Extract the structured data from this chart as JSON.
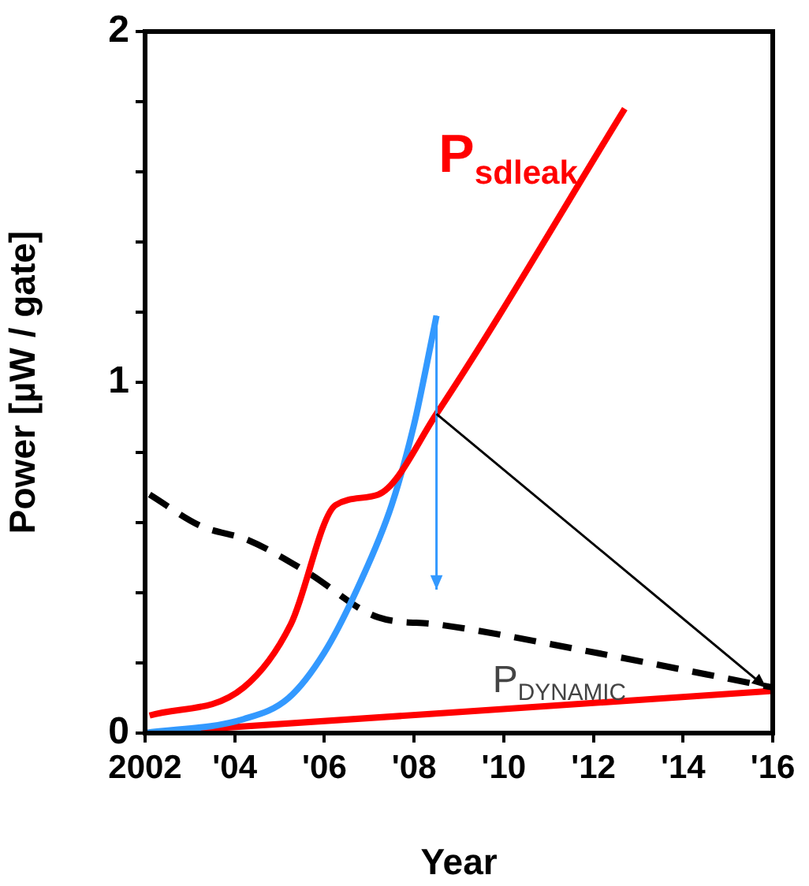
{
  "chart_data": {
    "type": "line",
    "xlabel": "Year",
    "ylabel": "Power [µW / gate]",
    "xlim": [
      2002,
      2016
    ],
    "xticks": [
      {
        "value": 2002,
        "label": "2002"
      },
      {
        "value": 2004,
        "label": "'04"
      },
      {
        "value": 2006,
        "label": "'06"
      },
      {
        "value": 2008,
        "label": "'08"
      },
      {
        "value": 2010,
        "label": "'10"
      },
      {
        "value": 2012,
        "label": "'12"
      },
      {
        "value": 2014,
        "label": "'14"
      },
      {
        "value": 2016,
        "label": "'16"
      }
    ],
    "ylim": [
      0,
      2
    ],
    "yticks": [
      0,
      {
        "value": 0.2,
        "label": null
      },
      {
        "value": 0.4,
        "label": null
      },
      {
        "value": 0.6,
        "label": null
      },
      {
        "value": 0.8,
        "label": null
      },
      1,
      {
        "value": 1.2,
        "label": null
      },
      {
        "value": 1.4,
        "label": null
      },
      {
        "value": 1.6,
        "label": null
      },
      {
        "value": 1.8,
        "label": null
      },
      2
    ],
    "grid": false,
    "legend": false,
    "series": [
      {
        "name": "P$_{sdleak}$",
        "color": "#ff0000",
        "x": [
          2002.1,
          2004.2,
          2005.25,
          2006.25,
          2007.2,
          2008.5,
          2012.7
        ],
        "values": [
          0.05,
          0.13,
          0.31,
          0.65,
          0.68,
          0.91,
          1.78
        ]
      },
      {
        "color": "#3399ff",
        "x": [
          2002,
          2004.2,
          2005.2,
          2006,
          2006.8,
          2007.5,
          2008,
          2008.25,
          2008.5
        ],
        "values": [
          0,
          0.04,
          0.1,
          0.23,
          0.43,
          0.65,
          0.88,
          1.03,
          1.19
        ]
      },
      {
        "name": "P$_{DYNAMIC}$",
        "color": "#000000",
        "line_style": "dashed",
        "x": [
          2002.1,
          2003.25,
          2004.3,
          2005.6,
          2007.2,
          2008.5,
          2011.6,
          2016
        ],
        "values": [
          0.68,
          0.59,
          0.55,
          0.46,
          0.33,
          0.31,
          0.24,
          0.13
        ]
      },
      {
        "color": "#ff0000",
        "x": [
          2002,
          2016
        ],
        "values": [
          0,
          0.12
        ]
      }
    ]
  }
}
